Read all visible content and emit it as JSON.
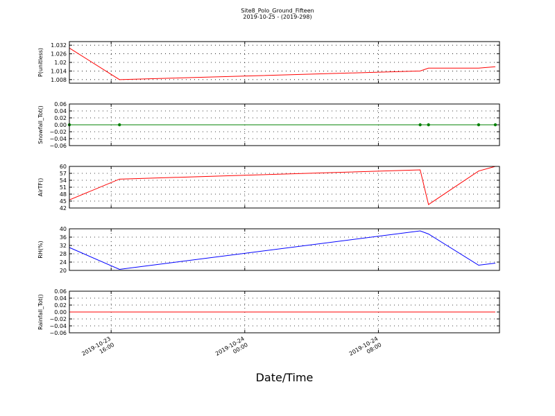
{
  "title": "Site8_Polo_Ground_Fifteen",
  "subtitle": "2019-10-25 - (2019-298)",
  "x_axis": {
    "label": "Date/Time",
    "xlim": [
      "2019-10-23 13:30",
      "2019-10-24 15:15"
    ],
    "xticks": [
      {
        "value": "2019-10-23 16:00",
        "label": "2019-10-23\n16:00"
      },
      {
        "value": "2019-10-24 00:00",
        "label": "2019-10-24\n00:00"
      },
      {
        "value": "2019-10-24 08:00",
        "label": "2019-10-24\n08:00"
      }
    ]
  },
  "chart_data": [
    {
      "type": "line",
      "ylabel": "P(unitless)",
      "color": "#ff0000",
      "markers": false,
      "x": [
        "2019-10-23 13:30",
        "2019-10-23 16:30",
        "2019-10-24 10:30",
        "2019-10-24 11:00",
        "2019-10-24 14:00",
        "2019-10-24 15:00"
      ],
      "values": [
        1.03,
        1.008,
        1.014,
        1.016,
        1.016,
        1.017
      ],
      "ylim": [
        1.0055,
        1.0345
      ],
      "yticks": [
        1.008,
        1.014,
        1.02,
        1.026,
        1.032
      ],
      "grid": true
    },
    {
      "type": "line",
      "ylabel": "Snowfall_Tot()",
      "color": "#008000",
      "markers": true,
      "x": [
        "2019-10-23 13:30",
        "2019-10-23 16:30",
        "2019-10-24 10:30",
        "2019-10-24 11:00",
        "2019-10-24 14:00",
        "2019-10-24 15:00"
      ],
      "values": [
        0,
        0,
        0,
        0,
        0,
        0
      ],
      "ylim": [
        -0.06,
        0.06
      ],
      "yticks": [
        {
          "value": -0.06,
          "label": "−0.06"
        },
        {
          "value": -0.04,
          "label": "−0.04"
        },
        {
          "value": -0.02,
          "label": "−0.02"
        },
        {
          "value": 0,
          "label": "0.00"
        },
        {
          "value": 0.02,
          "label": "0.02"
        },
        {
          "value": 0.04,
          "label": "0.04"
        },
        {
          "value": 0.06,
          "label": "0.06"
        }
      ],
      "grid": true
    },
    {
      "type": "line",
      "ylabel": "AirTF()",
      "color": "#ff0000",
      "markers": false,
      "x": [
        "2019-10-23 13:30",
        "2019-10-23 16:30",
        "2019-10-24 10:30",
        "2019-10-24 11:00",
        "2019-10-24 14:00",
        "2019-10-24 15:00"
      ],
      "values": [
        45.5,
        54.5,
        58.5,
        43.5,
        58,
        60
      ],
      "ylim": [
        42,
        60
      ],
      "yticks": [
        42,
        45,
        48,
        51,
        54,
        57,
        60
      ],
      "grid": true
    },
    {
      "type": "line",
      "ylabel": "RH(%)",
      "color": "#0000ff",
      "markers": false,
      "x": [
        "2019-10-23 13:30",
        "2019-10-23 16:30",
        "2019-10-24 10:30",
        "2019-10-24 11:00",
        "2019-10-24 14:00",
        "2019-10-24 15:00"
      ],
      "values": [
        31,
        20.5,
        39,
        37.5,
        22.5,
        23.5
      ],
      "ylim": [
        20,
        40
      ],
      "yticks": [
        20,
        24,
        28,
        32,
        36,
        40
      ],
      "grid": true
    },
    {
      "type": "line",
      "ylabel": "Rainfall_Tot()",
      "color": "#ff0000",
      "markers": false,
      "x": [
        "2019-10-23 13:30",
        "2019-10-23 16:30",
        "2019-10-24 10:30",
        "2019-10-24 11:00",
        "2019-10-24 14:00",
        "2019-10-24 15:00"
      ],
      "values": [
        0,
        0,
        0,
        0,
        0,
        0
      ],
      "ylim": [
        -0.06,
        0.06
      ],
      "yticks": [
        {
          "value": -0.06,
          "label": "−0.06"
        },
        {
          "value": -0.04,
          "label": "−0.04"
        },
        {
          "value": -0.02,
          "label": "−0.02"
        },
        {
          "value": 0,
          "label": "0.00"
        },
        {
          "value": 0.02,
          "label": "0.02"
        },
        {
          "value": 0.04,
          "label": "0.04"
        },
        {
          "value": 0.06,
          "label": "0.06"
        }
      ],
      "grid": true
    }
  ]
}
